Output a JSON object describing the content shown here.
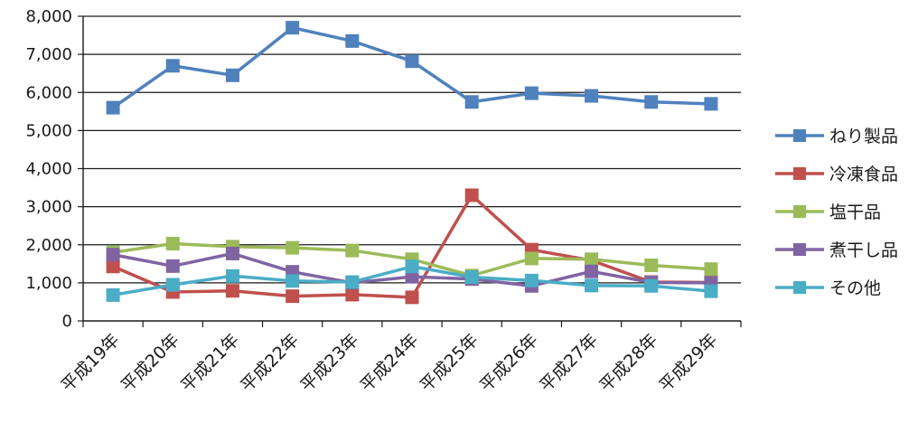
{
  "chart_data": {
    "type": "line",
    "title": "",
    "xlabel": "",
    "ylabel": "",
    "categories": [
      "平成19年",
      "平成20年",
      "平成21年",
      "平成22年",
      "平成23年",
      "平成24年",
      "平成25年",
      "平成26年",
      "平成27年",
      "平成28年",
      "平成29年"
    ],
    "ylim": [
      0,
      8000
    ],
    "yticks": [
      0,
      1000,
      2000,
      3000,
      4000,
      5000,
      6000,
      7000,
      8000
    ],
    "ytick_labels": [
      "0",
      "1,000",
      "2,000",
      "3,000",
      "4,000",
      "5,000",
      "6,000",
      "7,000",
      "8,000"
    ],
    "grid": true,
    "legend_position": "right",
    "series": [
      {
        "name": "ねり製品",
        "color": "#4f81bd",
        "values": [
          5600,
          6700,
          6450,
          7700,
          7350,
          6820,
          5750,
          5980,
          5910,
          5750,
          5700
        ]
      },
      {
        "name": "冷凍食品",
        "color": "#c0504d",
        "values": [
          1430,
          760,
          790,
          650,
          690,
          620,
          3300,
          1870,
          1590,
          1020,
          1010
        ]
      },
      {
        "name": "塩干品",
        "color": "#9bbb59",
        "values": [
          1800,
          2030,
          1950,
          1920,
          1850,
          1620,
          1190,
          1640,
          1620,
          1460,
          1360
        ]
      },
      {
        "name": "煮干し品",
        "color": "#8064a2",
        "values": [
          1740,
          1440,
          1770,
          1290,
          1000,
          1160,
          1100,
          920,
          1300,
          1010,
          1000
        ]
      },
      {
        "name": "その他",
        "color": "#4bacc6",
        "values": [
          680,
          950,
          1180,
          1050,
          1020,
          1430,
          1150,
          1060,
          930,
          920,
          780
        ]
      }
    ]
  }
}
